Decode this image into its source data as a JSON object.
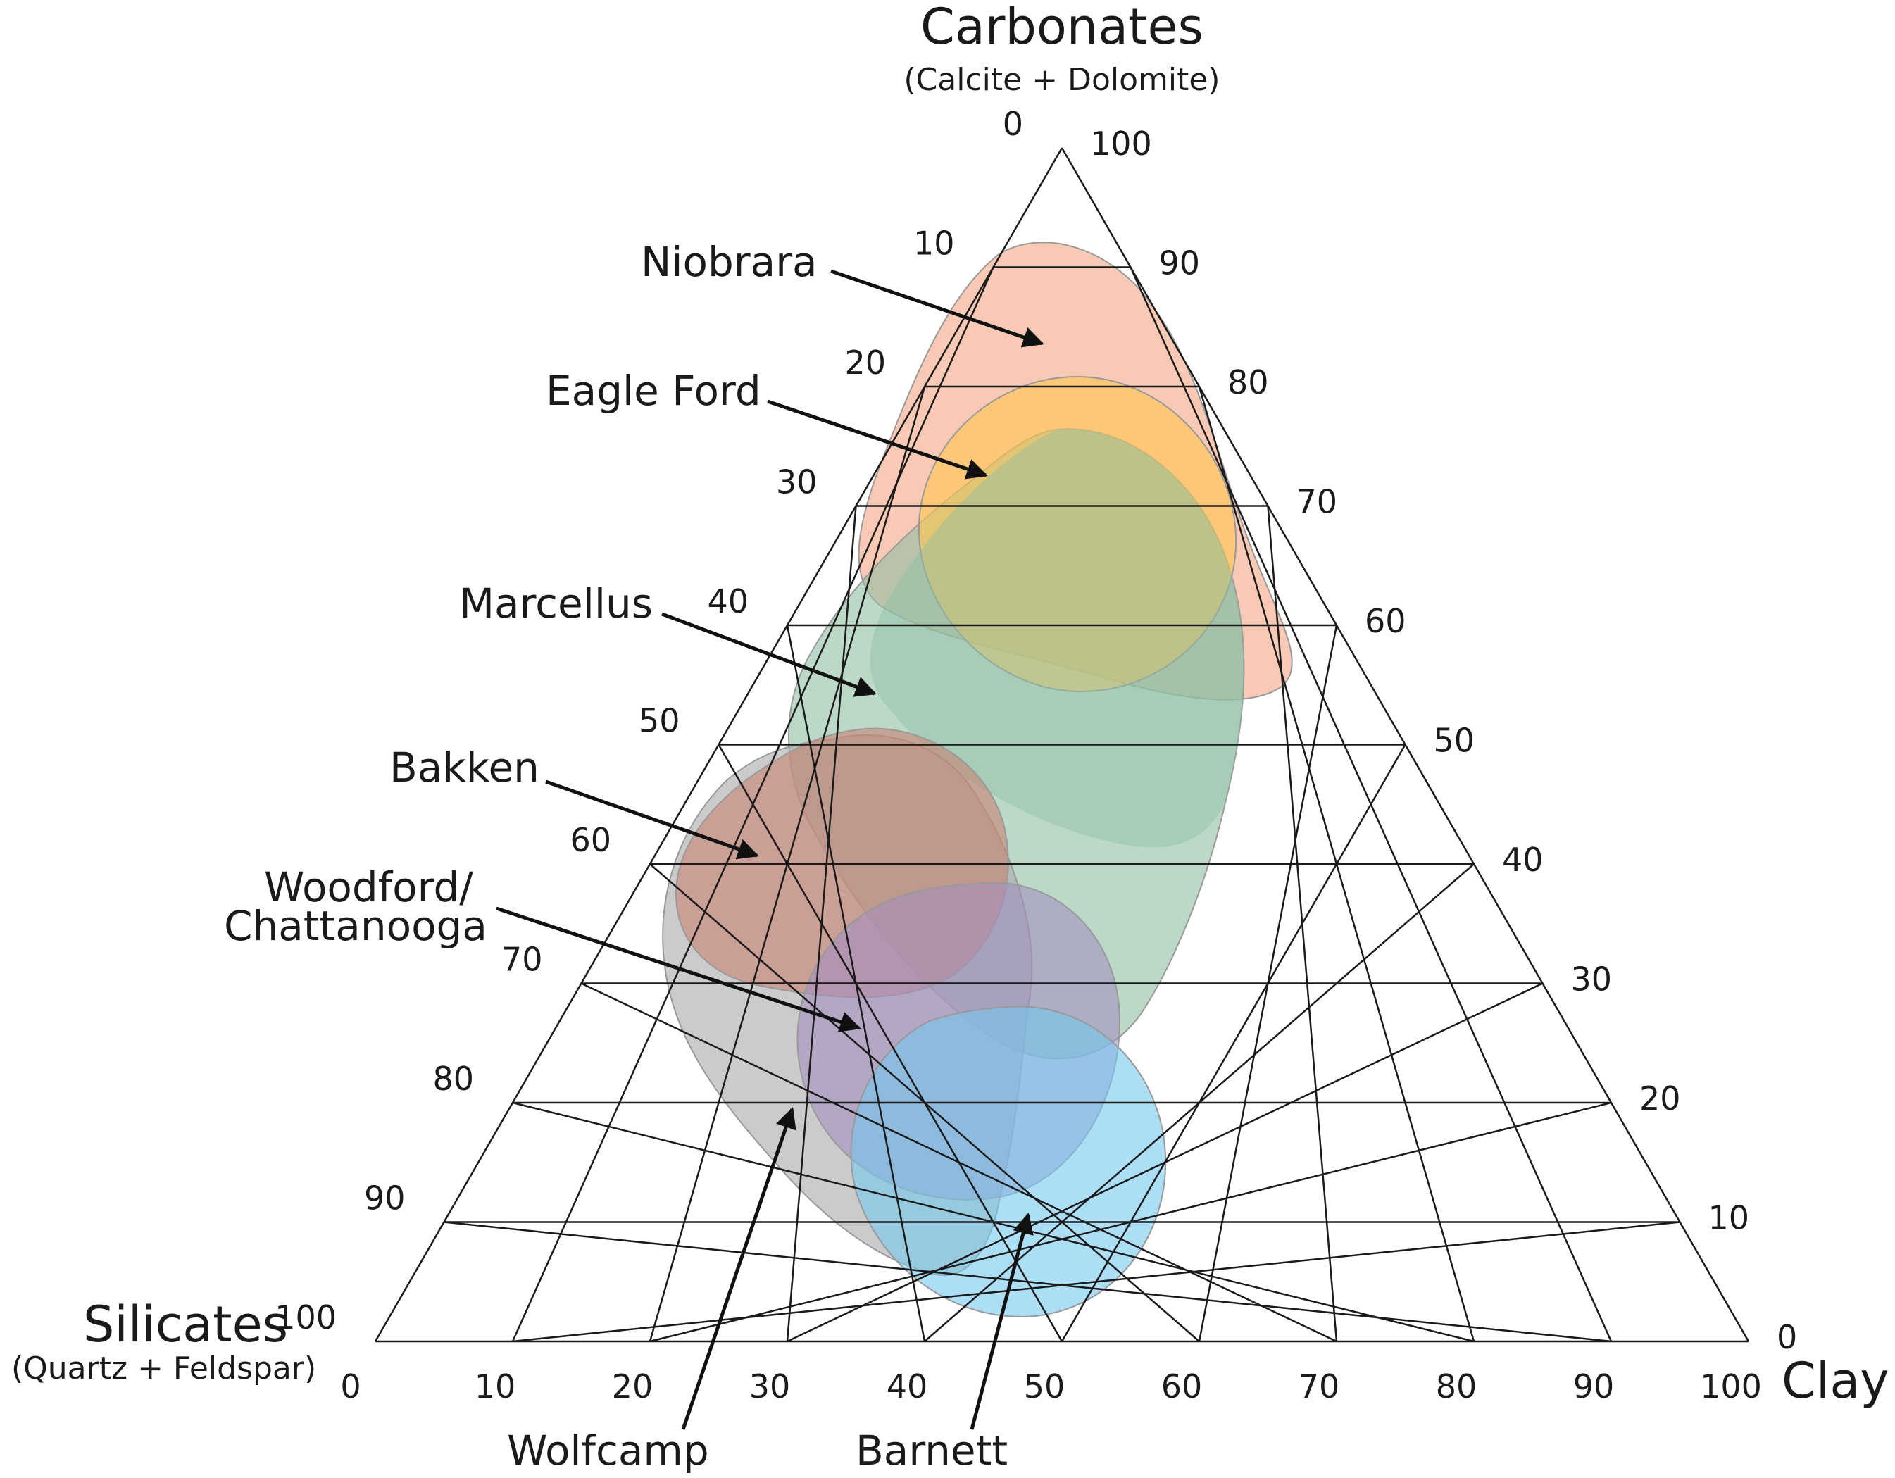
{
  "diagram": {
    "type": "ternary",
    "apex_top": {
      "title": "Carbonates",
      "subtitle": "(Calcite + Dolomite)"
    },
    "apex_left": {
      "title": "Silicates",
      "subtitle": "(Quartz + Feldspar)"
    },
    "apex_right": {
      "title": "Clay"
    },
    "left_edge_ticks": [
      "0",
      "10",
      "20",
      "30",
      "40",
      "50",
      "60",
      "70",
      "80",
      "90",
      "100"
    ],
    "right_edge_ticks": [
      "100",
      "90",
      "80",
      "70",
      "60",
      "50",
      "40",
      "30",
      "20",
      "10",
      "0"
    ],
    "bottom_edge_ticks": [
      "0",
      "10",
      "20",
      "30",
      "40",
      "50",
      "60",
      "70",
      "80",
      "90",
      "100"
    ],
    "formations": [
      {
        "name": "Niobrara",
        "color": "#f4a582"
      },
      {
        "name": "Eagle Ford",
        "color": "#ffc74f"
      },
      {
        "name": "Marcellus",
        "color": "#8fbfa3"
      },
      {
        "name": "Bakken",
        "color": "#c98273"
      },
      {
        "name": "Woodford/",
        "name2": "Chattanooga",
        "color": "#a48fbf"
      },
      {
        "name": "Wolfcamp",
        "color": "#a8a8a8"
      },
      {
        "name": "Barnett",
        "color": "#74c8ee"
      }
    ]
  }
}
